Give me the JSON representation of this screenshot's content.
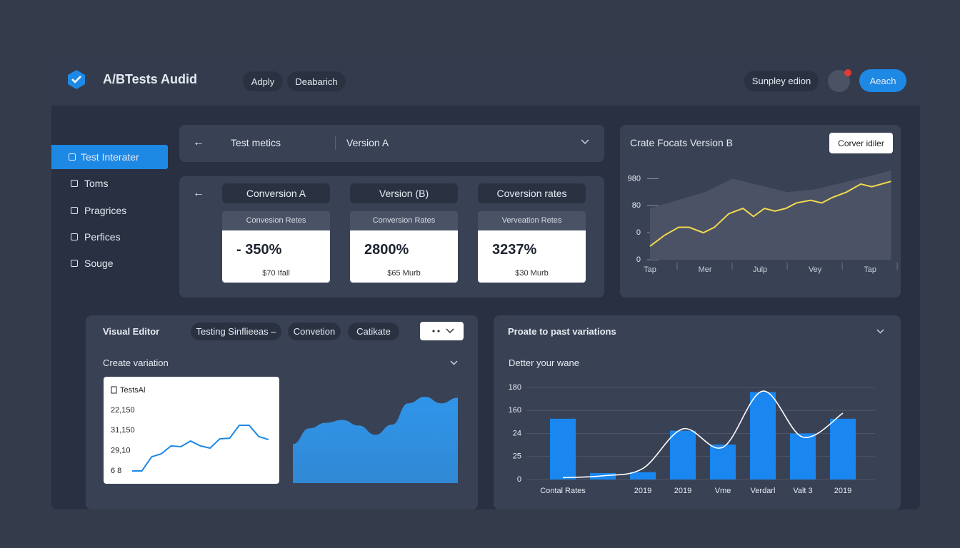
{
  "header": {
    "title": "A/BTests Audid",
    "buttons": [
      "Adply",
      "Deabarich"
    ],
    "display_button": "Sunpley edion",
    "action_button": "Aeach"
  },
  "sidebar": {
    "items": [
      "Test Interater",
      "Toms",
      "Pragrices",
      "Perfices",
      "Souge"
    ]
  },
  "test_bar": {
    "title": "Test metics",
    "version": "Version A"
  },
  "metrics": {
    "tabs": [
      "Conversion A",
      "Version (B)",
      "Coversion rates"
    ],
    "cards": [
      {
        "label": "Convesion Retes",
        "value": "- 350%",
        "sub": "$70 Ifall"
      },
      {
        "label": "Conversion Rates",
        "value": "2800%",
        "sub": "$65 Murb"
      },
      {
        "label": "Verveation Retes",
        "value": "3237%",
        "sub": "$30 Murb"
      }
    ]
  },
  "forecast_panel": {
    "title": "Crate Focats Version B",
    "button": "Corver idiler"
  },
  "visual_editor": {
    "title": "Visual Editor",
    "tabs": [
      "Testing Sinflieeas –",
      "Convetion",
      "Catikate"
    ],
    "subtitle": "Create variation"
  },
  "variations_panel": {
    "title": "Proate to past variations",
    "subtitle": "Detter your wane"
  },
  "chart_data": [
    {
      "type": "line",
      "xlim": [
        0,
        4.4
      ],
      "ylim": [
        0,
        3.3
      ],
      "xticks": [
        {
          "value": 0,
          "label": "Tap"
        },
        {
          "value": 1,
          "label": "Mer"
        },
        {
          "value": 2,
          "label": "Julp"
        },
        {
          "value": 3,
          "label": "Vey"
        },
        {
          "value": 4,
          "label": "Tap"
        }
      ],
      "yticks": [
        {
          "value": 3,
          "label": "980"
        },
        {
          "value": 2,
          "label": "80"
        },
        {
          "value": 1,
          "label": "0"
        },
        0
      ],
      "series": [
        {
          "color": "#4b5265",
          "area": true,
          "x": [
            0,
            0.5,
            1.0,
            1.3,
            1.5,
            1.9,
            2.5,
            3.0,
            3.6,
            4.0,
            4.38
          ],
          "values": [
            1.9,
            2.2,
            2.5,
            2.8,
            3.0,
            2.8,
            2.5,
            2.6,
            2.9,
            3.1,
            3.3
          ]
        },
        {
          "color": "#f2d94e",
          "x": [
            0,
            0.26,
            0.52,
            0.71,
            0.97,
            1.17,
            1.43,
            1.69,
            1.88,
            2.08,
            2.27,
            2.47,
            2.66,
            2.92,
            3.12,
            3.31,
            3.57,
            3.83,
            4.03,
            4.38
          ],
          "values": [
            0.5,
            0.9,
            1.2,
            1.2,
            1.0,
            1.2,
            1.7,
            1.9,
            1.6,
            1.9,
            1.8,
            1.9,
            2.1,
            2.2,
            2.1,
            2.3,
            2.5,
            2.8,
            2.7,
            2.9
          ]
        }
      ]
    },
    {
      "type": "line",
      "xlim": [
        0,
        14
      ],
      "ylim": [
        0,
        3
      ],
      "yticks": [
        {
          "value": 3,
          "label": "22,150"
        },
        {
          "value": 2,
          "label": "31,150"
        },
        {
          "value": 1,
          "label": "29,10"
        },
        {
          "value": 0,
          "label": "6 8"
        }
      ],
      "series": [
        {
          "name": "TestsAl",
          "color": "#1e88e5",
          "x": [
            0,
            1,
            2,
            3,
            4,
            5,
            6,
            7,
            8,
            9,
            10,
            11,
            12,
            13,
            14
          ],
          "values": [
            0,
            0,
            0.7,
            0.85,
            1.24,
            1.2,
            1.48,
            1.24,
            1.13,
            1.59,
            1.62,
            2.26,
            2.26,
            1.7,
            1.55
          ]
        }
      ]
    },
    {
      "type": "area",
      "xlim": [
        0,
        10
      ],
      "ylim": [
        0,
        100
      ],
      "color": "#2f95ea",
      "x": [
        0,
        1,
        2,
        3,
        4,
        5,
        6,
        7,
        8,
        9,
        10
      ],
      "values": [
        42,
        59,
        65,
        68,
        62,
        52,
        63,
        86,
        93,
        86,
        92
      ]
    },
    {
      "type": "bar_line",
      "categories": [
        "Contal Rates",
        null,
        "2019",
        "2019",
        "Vme",
        "Verdarl",
        "Valt 3",
        "2019"
      ],
      "ylim": [
        0,
        100
      ],
      "yticks": [
        {
          "value": 100,
          "label": "180"
        },
        {
          "value": 75,
          "label": "160"
        },
        {
          "value": 50,
          "label": "24"
        },
        {
          "value": 25,
          "label": "25"
        },
        0
      ],
      "grid": true,
      "series": [
        {
          "kind": "bar",
          "color": "#1a86f0",
          "values": [
            66,
            7,
            8,
            53,
            38,
            95,
            50,
            66
          ]
        },
        {
          "kind": "line",
          "color": "#ffffff",
          "values": [
            2,
            4,
            12,
            55,
            35,
            96,
            46,
            72
          ]
        }
      ]
    }
  ]
}
